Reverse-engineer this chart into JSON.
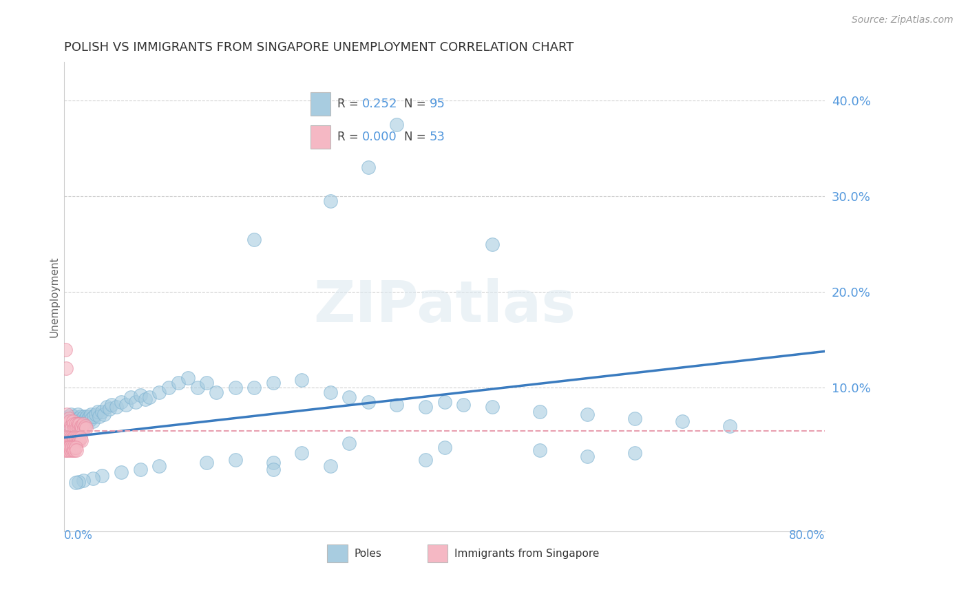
{
  "title": "POLISH VS IMMIGRANTS FROM SINGAPORE UNEMPLOYMENT CORRELATION CHART",
  "source": "Source: ZipAtlas.com",
  "ylabel": "Unemployment",
  "xlim": [
    0.0,
    0.8
  ],
  "ylim": [
    -0.05,
    0.44
  ],
  "legend_R_blue": "0.252",
  "legend_N_blue": "95",
  "legend_R_pink": "0.000",
  "legend_N_pink": "53",
  "blue_color": "#a8cce0",
  "blue_edge_color": "#7ab0d0",
  "pink_color": "#f5b8c4",
  "pink_edge_color": "#e888a0",
  "trendline_blue_color": "#3a7bbf",
  "trendline_pink_color": "#e8a0b0",
  "blue_trend_start_y": 0.048,
  "blue_trend_end_y": 0.138,
  "pink_trend_y": 0.055,
  "watermark_text": "ZIPatlas",
  "background_color": "#ffffff",
  "grid_color": "#d0d0d0",
  "ytick_color": "#5599dd",
  "poles_x": [
    0.002,
    0.003,
    0.004,
    0.005,
    0.006,
    0.007,
    0.008,
    0.009,
    0.01,
    0.011,
    0.012,
    0.013,
    0.014,
    0.015,
    0.016,
    0.017,
    0.018,
    0.019,
    0.02,
    0.021,
    0.022,
    0.023,
    0.024,
    0.025,
    0.026,
    0.027,
    0.028,
    0.029,
    0.03,
    0.031,
    0.033,
    0.035,
    0.037,
    0.04,
    0.042,
    0.045,
    0.048,
    0.05,
    0.055,
    0.06,
    0.065,
    0.07,
    0.075,
    0.08,
    0.085,
    0.09,
    0.1,
    0.11,
    0.12,
    0.13,
    0.14,
    0.15,
    0.16,
    0.18,
    0.2,
    0.22,
    0.25,
    0.28,
    0.3,
    0.32,
    0.35,
    0.38,
    0.4,
    0.42,
    0.45,
    0.5,
    0.55,
    0.6,
    0.65,
    0.7,
    0.35,
    0.28,
    0.32,
    0.2,
    0.45,
    0.3,
    0.4,
    0.25,
    0.55,
    0.15,
    0.18,
    0.22,
    0.1,
    0.08,
    0.06,
    0.04,
    0.03,
    0.02,
    0.015,
    0.012,
    0.5,
    0.6,
    0.38,
    0.28,
    0.22
  ],
  "poles_y": [
    0.065,
    0.068,
    0.07,
    0.065,
    0.06,
    0.072,
    0.068,
    0.065,
    0.07,
    0.062,
    0.068,
    0.065,
    0.072,
    0.068,
    0.065,
    0.07,
    0.062,
    0.068,
    0.065,
    0.07,
    0.068,
    0.065,
    0.07,
    0.068,
    0.065,
    0.07,
    0.072,
    0.068,
    0.065,
    0.07,
    0.072,
    0.075,
    0.07,
    0.075,
    0.072,
    0.08,
    0.078,
    0.082,
    0.08,
    0.085,
    0.082,
    0.09,
    0.085,
    0.092,
    0.088,
    0.09,
    0.095,
    0.1,
    0.105,
    0.11,
    0.1,
    0.105,
    0.095,
    0.1,
    0.1,
    0.105,
    0.108,
    0.095,
    0.09,
    0.085,
    0.082,
    0.08,
    0.085,
    0.082,
    0.08,
    0.075,
    0.072,
    0.068,
    0.065,
    0.06,
    0.375,
    0.295,
    0.33,
    0.255,
    0.25,
    0.042,
    0.038,
    0.032,
    0.028,
    0.022,
    0.025,
    0.022,
    0.018,
    0.015,
    0.012,
    0.008,
    0.005,
    0.003,
    0.002,
    0.001,
    0.035,
    0.032,
    0.025,
    0.018,
    0.015
  ],
  "singapore_x": [
    0.001,
    0.002,
    0.003,
    0.004,
    0.005,
    0.006,
    0.007,
    0.008,
    0.009,
    0.01,
    0.011,
    0.012,
    0.013,
    0.014,
    0.015,
    0.016,
    0.017,
    0.018,
    0.019,
    0.02,
    0.021,
    0.022,
    0.023,
    0.002,
    0.003,
    0.004,
    0.005,
    0.006,
    0.007,
    0.008,
    0.009,
    0.01,
    0.011,
    0.012,
    0.013,
    0.014,
    0.015,
    0.016,
    0.017,
    0.018,
    0.001,
    0.002,
    0.003,
    0.004,
    0.005,
    0.006,
    0.007,
    0.008,
    0.009,
    0.01,
    0.011,
    0.012,
    0.013
  ],
  "singapore_y": [
    0.14,
    0.12,
    0.072,
    0.062,
    0.068,
    0.065,
    0.06,
    0.058,
    0.065,
    0.062,
    0.058,
    0.062,
    0.058,
    0.062,
    0.058,
    0.062,
    0.058,
    0.06,
    0.058,
    0.062,
    0.058,
    0.06,
    0.058,
    0.045,
    0.048,
    0.045,
    0.048,
    0.045,
    0.048,
    0.045,
    0.048,
    0.045,
    0.048,
    0.045,
    0.048,
    0.045,
    0.048,
    0.045,
    0.048,
    0.045,
    0.035,
    0.038,
    0.035,
    0.038,
    0.035,
    0.038,
    0.035,
    0.038,
    0.035,
    0.038,
    0.035,
    0.038,
    0.035
  ]
}
